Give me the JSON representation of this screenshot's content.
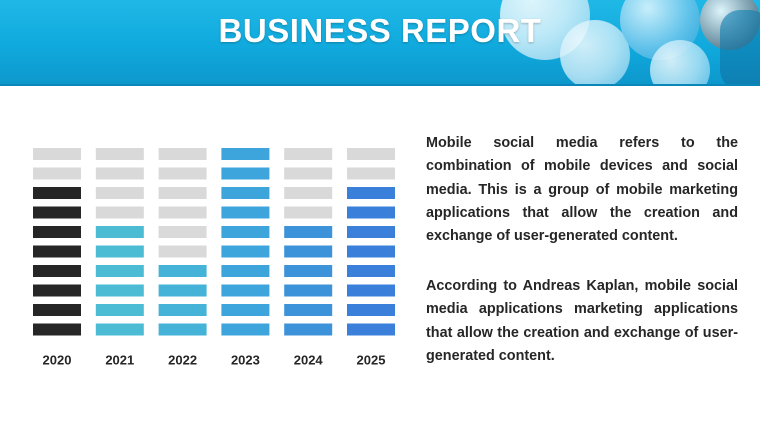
{
  "header": {
    "title": "BUSINESS REPORT"
  },
  "colors": {
    "header_blue": "#14b0e2",
    "empty_segment": "#d9d9d9",
    "title_text": "#ffffff",
    "body_text": "#262626"
  },
  "chart_data": {
    "type": "bar",
    "categories": [
      "2020",
      "2021",
      "2022",
      "2023",
      "2024",
      "2025"
    ],
    "values": [
      8,
      6,
      4,
      10,
      6,
      8
    ],
    "max_segments": 10,
    "colors": [
      "#262626",
      "#4bbcd4",
      "#45b2d8",
      "#3ea5dc",
      "#3d93d9",
      "#3a80db"
    ]
  },
  "paragraphs": [
    "Mobile social media refers to the combination of mobile devices and social media. This is a group of mobile marketing applications that allow the creation and exchange of user-generated content.",
    "According to Andreas Kaplan, mobile social media applications marketing applications that allow the creation and exchange of user-generated content."
  ]
}
